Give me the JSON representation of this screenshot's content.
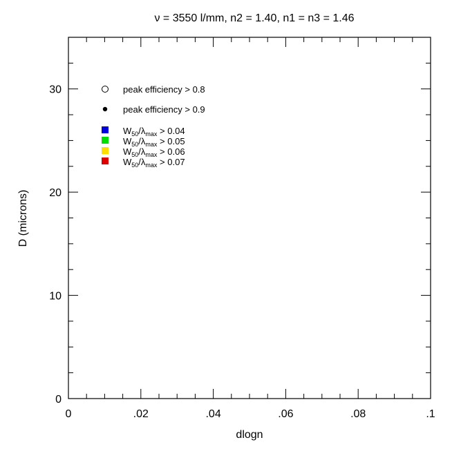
{
  "chart_data": {
    "type": "scatter",
    "title": "ν = 3550 l/mm, n2 = 1.40, n1 = n3 = 1.46",
    "xlabel": "dlogn",
    "ylabel": "D (microns)",
    "xlim": [
      0,
      0.1
    ],
    "ylim": [
      0,
      35
    ],
    "x_ticks": [
      {
        "value": 0,
        "label": "0"
      },
      {
        "value": 0.02,
        "label": ".02"
      },
      {
        "value": 0.04,
        "label": ".04"
      },
      {
        "value": 0.06,
        "label": ".06"
      },
      {
        "value": 0.08,
        "label": ".08"
      },
      {
        "value": 0.1,
        "label": ".1"
      }
    ],
    "y_ticks": [
      {
        "value": 0,
        "label": "0"
      },
      {
        "value": 10,
        "label": "10"
      },
      {
        "value": 20,
        "label": "20"
      },
      {
        "value": 30,
        "label": "30"
      }
    ],
    "x_minor_step": 0.005,
    "y_minor_step": 2.5,
    "legend_position": "top-left",
    "legend": [
      {
        "marker": "open-circle",
        "color": "#000000",
        "label": "peak efficiency > 0.8"
      },
      {
        "marker": "filled-circle",
        "color": "#000000",
        "label": "peak efficiency > 0.9"
      },
      {
        "marker": "square",
        "color": "#0000dd",
        "W": "W",
        "sub50": "50",
        "slash": "/λ",
        "submax": "max",
        "rest": "> 0.04"
      },
      {
        "marker": "square",
        "color": "#00dd00",
        "W": "W",
        "sub50": "50",
        "slash": "/λ",
        "submax": "max",
        "rest": "> 0.05"
      },
      {
        "marker": "square",
        "color": "#ffdd00",
        "W": "W",
        "sub50": "50",
        "slash": "/λ",
        "submax": "max",
        "rest": "> 0.06"
      },
      {
        "marker": "square",
        "color": "#dd0000",
        "W": "W",
        "sub50": "50",
        "slash": "/λ",
        "submax": "max",
        "rest": "> 0.07"
      }
    ],
    "series": []
  }
}
